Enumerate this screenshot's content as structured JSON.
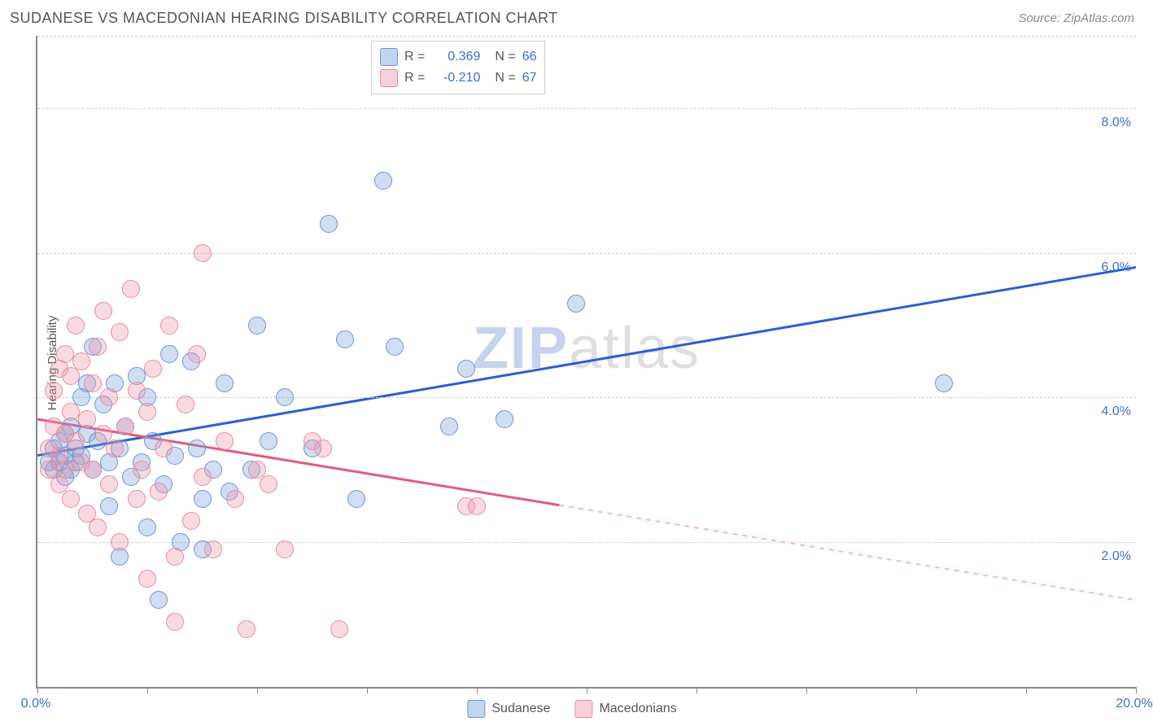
{
  "header": {
    "title": "SUDANESE VS MACEDONIAN HEARING DISABILITY CORRELATION CHART",
    "source": "Source: ZipAtlas.com"
  },
  "y_axis": {
    "label": "Hearing Disability"
  },
  "chart": {
    "type": "scatter",
    "xlim": [
      0,
      20
    ],
    "ylim": [
      0,
      9
    ],
    "x_ticks": [
      0,
      2,
      4,
      6,
      8,
      10,
      12,
      14,
      16,
      18,
      20
    ],
    "x_tick_labels": {
      "0": "0.0%",
      "20": "20.0%"
    },
    "y_gridlines": [
      2,
      4,
      6,
      8
    ],
    "y_tick_labels": {
      "2": "2.0%",
      "4": "4.0%",
      "6": "6.0%",
      "8": "8.0%"
    },
    "background_color": "#ffffff",
    "grid_color": "#d0d0d0",
    "axis_color": "#888888",
    "marker_radius": 11,
    "marker_stroke_width": 1.5,
    "series": [
      {
        "name": "Sudanese",
        "fill": "rgba(120,160,220,0.35)",
        "stroke": "#6a95d6",
        "trend": {
          "x1": 0,
          "y1": 3.2,
          "x2": 20,
          "y2": 5.8,
          "solid_until_x": 20,
          "color": "#2a5fd0",
          "width": 3
        },
        "points": [
          [
            0.2,
            3.1
          ],
          [
            0.3,
            3.3
          ],
          [
            0.3,
            3.0
          ],
          [
            0.4,
            3.4
          ],
          [
            0.4,
            3.1
          ],
          [
            0.5,
            3.2
          ],
          [
            0.5,
            2.9
          ],
          [
            0.5,
            3.5
          ],
          [
            0.6,
            3.0
          ],
          [
            0.6,
            3.6
          ],
          [
            0.7,
            3.1
          ],
          [
            0.7,
            3.3
          ],
          [
            0.8,
            4.0
          ],
          [
            0.8,
            3.2
          ],
          [
            0.9,
            3.5
          ],
          [
            0.9,
            4.2
          ],
          [
            1.0,
            3.0
          ],
          [
            1.0,
            4.7
          ],
          [
            1.1,
            3.4
          ],
          [
            1.2,
            3.9
          ],
          [
            1.3,
            3.1
          ],
          [
            1.3,
            2.5
          ],
          [
            1.4,
            4.2
          ],
          [
            1.5,
            3.3
          ],
          [
            1.5,
            1.8
          ],
          [
            1.6,
            3.6
          ],
          [
            1.7,
            2.9
          ],
          [
            1.8,
            4.3
          ],
          [
            1.9,
            3.1
          ],
          [
            2.0,
            2.2
          ],
          [
            2.0,
            4.0
          ],
          [
            2.1,
            3.4
          ],
          [
            2.2,
            1.2
          ],
          [
            2.3,
            2.8
          ],
          [
            2.4,
            4.6
          ],
          [
            2.5,
            3.2
          ],
          [
            2.6,
            2.0
          ],
          [
            2.8,
            4.5
          ],
          [
            2.9,
            3.3
          ],
          [
            3.0,
            1.9
          ],
          [
            3.0,
            2.6
          ],
          [
            3.2,
            3.0
          ],
          [
            3.4,
            4.2
          ],
          [
            3.5,
            2.7
          ],
          [
            3.9,
            3.0
          ],
          [
            4.0,
            5.0
          ],
          [
            4.2,
            3.4
          ],
          [
            4.5,
            4.0
          ],
          [
            5.0,
            3.3
          ],
          [
            5.3,
            6.4
          ],
          [
            5.6,
            4.8
          ],
          [
            5.8,
            2.6
          ],
          [
            6.3,
            7.0
          ],
          [
            6.5,
            4.7
          ],
          [
            7.5,
            3.6
          ],
          [
            7.8,
            4.4
          ],
          [
            8.5,
            3.7
          ],
          [
            9.8,
            5.3
          ],
          [
            16.5,
            4.2
          ]
        ]
      },
      {
        "name": "Macedonians",
        "fill": "rgba(240,150,170,0.35)",
        "stroke": "#e88aa0",
        "trend": {
          "x1": 0,
          "y1": 3.7,
          "x2": 20,
          "y2": 1.2,
          "solid_until_x": 9.5,
          "color": "#e25b80",
          "width": 3,
          "dash": "6 6",
          "dash_color": "#f2b8c5"
        },
        "points": [
          [
            0.2,
            3.3
          ],
          [
            0.2,
            3.0
          ],
          [
            0.3,
            3.6
          ],
          [
            0.3,
            4.1
          ],
          [
            0.4,
            3.2
          ],
          [
            0.4,
            4.4
          ],
          [
            0.4,
            2.8
          ],
          [
            0.5,
            3.5
          ],
          [
            0.5,
            4.6
          ],
          [
            0.5,
            3.0
          ],
          [
            0.6,
            3.8
          ],
          [
            0.6,
            4.3
          ],
          [
            0.6,
            2.6
          ],
          [
            0.7,
            3.4
          ],
          [
            0.7,
            5.0
          ],
          [
            0.8,
            3.1
          ],
          [
            0.8,
            4.5
          ],
          [
            0.9,
            3.7
          ],
          [
            0.9,
            2.4
          ],
          [
            1.0,
            4.2
          ],
          [
            1.0,
            3.0
          ],
          [
            1.1,
            4.7
          ],
          [
            1.1,
            2.2
          ],
          [
            1.2,
            3.5
          ],
          [
            1.2,
            5.2
          ],
          [
            1.3,
            2.8
          ],
          [
            1.3,
            4.0
          ],
          [
            1.4,
            3.3
          ],
          [
            1.5,
            4.9
          ],
          [
            1.5,
            2.0
          ],
          [
            1.6,
            3.6
          ],
          [
            1.7,
            5.5
          ],
          [
            1.8,
            2.6
          ],
          [
            1.8,
            4.1
          ],
          [
            1.9,
            3.0
          ],
          [
            2.0,
            3.8
          ],
          [
            2.0,
            1.5
          ],
          [
            2.1,
            4.4
          ],
          [
            2.2,
            2.7
          ],
          [
            2.3,
            3.3
          ],
          [
            2.4,
            5.0
          ],
          [
            2.5,
            1.8
          ],
          [
            2.5,
            0.9
          ],
          [
            2.7,
            3.9
          ],
          [
            2.8,
            2.3
          ],
          [
            2.9,
            4.6
          ],
          [
            3.0,
            2.9
          ],
          [
            3.0,
            6.0
          ],
          [
            3.2,
            1.9
          ],
          [
            3.4,
            3.4
          ],
          [
            3.6,
            2.6
          ],
          [
            3.8,
            0.8
          ],
          [
            4.0,
            3.0
          ],
          [
            4.2,
            2.8
          ],
          [
            4.5,
            1.9
          ],
          [
            5.0,
            3.4
          ],
          [
            5.2,
            3.3
          ],
          [
            5.5,
            0.8
          ],
          [
            7.8,
            2.5
          ],
          [
            8.0,
            2.5
          ]
        ]
      }
    ]
  },
  "statbox": {
    "rows": [
      {
        "swatch_fill": "rgba(120,160,220,0.45)",
        "swatch_stroke": "#6a95d6",
        "r_label": "R =",
        "r_val": "0.369",
        "n_label": "N =",
        "n_val": "66"
      },
      {
        "swatch_fill": "rgba(240,150,170,0.45)",
        "swatch_stroke": "#e88aa0",
        "r_label": "R =",
        "r_val": "-0.210",
        "n_label": "N =",
        "n_val": "67"
      }
    ]
  },
  "bottom_legend": [
    {
      "swatch_fill": "rgba(120,160,220,0.45)",
      "swatch_stroke": "#6a95d6",
      "label": "Sudanese"
    },
    {
      "swatch_fill": "rgba(240,150,170,0.45)",
      "swatch_stroke": "#e88aa0",
      "label": "Macedonians"
    }
  ],
  "watermark": {
    "z": "Z",
    "ip": "IP",
    "rest": "atlas"
  }
}
